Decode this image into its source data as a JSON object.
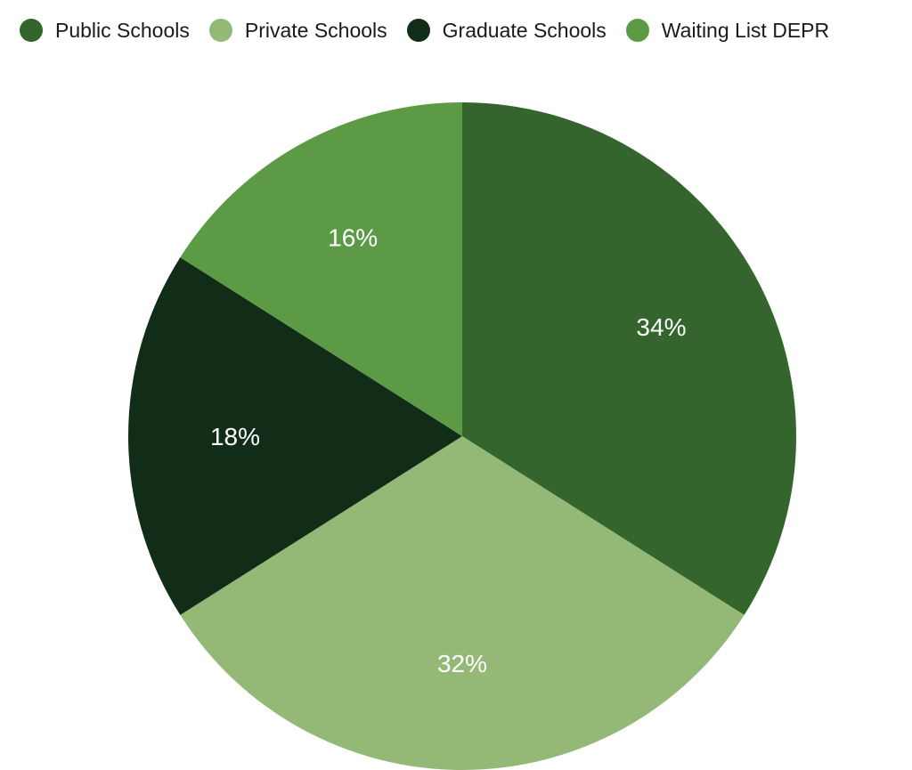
{
  "chart_data": {
    "type": "pie",
    "title": "",
    "categories": [
      "Public Schools",
      "Private Schools",
      "Graduate Schools",
      "Waiting List DEPR"
    ],
    "values": [
      34,
      32,
      18,
      16
    ],
    "labels": [
      "34%",
      "32%",
      "18%",
      "16%"
    ],
    "colors": [
      "#33652d",
      "#94b977",
      "#122d17",
      "#5d9a45"
    ],
    "legend_position": "top",
    "start_angle": "12 o'clock",
    "direction": "clockwise"
  },
  "legend": {
    "items": [
      {
        "label": "Public Schools",
        "color": "#33652d"
      },
      {
        "label": "Private Schools",
        "color": "#94b977"
      },
      {
        "label": "Graduate Schools",
        "color": "#122d17"
      },
      {
        "label": "Waiting List DEPR",
        "color": "#5d9a45"
      }
    ]
  }
}
